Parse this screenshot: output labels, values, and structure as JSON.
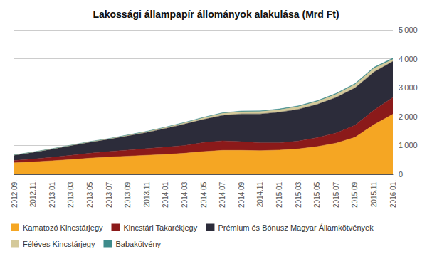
{
  "chart_data": {
    "type": "area",
    "title": "Lakossági állampapír állományok alakulása (Mrd Ft)",
    "stacked": true,
    "grid": true,
    "legend": "lower left",
    "categories": [
      "2012.09.",
      "2012.11.",
      "2013.01.",
      "2013.03.",
      "2013.05.",
      "2013.07.",
      "2013.09.",
      "2013.11.",
      "2014.01.",
      "2014.03.",
      "2014.05.",
      "2014.07.",
      "2014.09.",
      "2014.11.",
      "2015.01.",
      "2015.03.",
      "2015.05.",
      "2015.07.",
      "2015.09.",
      "2015.11.",
      "2016.01."
    ],
    "series": [
      {
        "name": "Kamatozó Kincstárjegy",
        "color": "#F5A623",
        "values": [
          400,
          430,
          470,
          510,
          560,
          600,
          630,
          660,
          690,
          730,
          790,
          830,
          830,
          820,
          840,
          880,
          960,
          1080,
          1280,
          1720,
          2080
        ]
      },
      {
        "name": "Kincstári Takarékjegy",
        "color": "#8B1A1A",
        "values": [
          80,
          100,
          120,
          150,
          170,
          190,
          210,
          230,
          250,
          270,
          310,
          330,
          300,
          270,
          250,
          270,
          310,
          350,
          420,
          500,
          580
        ]
      },
      {
        "name": "Prémium és Bónusz Magyar Államkötvények",
        "color": "#2C2C3A",
        "values": [
          180,
          230,
          280,
          330,
          380,
          420,
          490,
          560,
          650,
          740,
          800,
          880,
          960,
          1000,
          1060,
          1100,
          1150,
          1230,
          1290,
          1320,
          1250
        ]
      },
      {
        "name": "Féléves Kincstárjegy",
        "color": "#D4C99A",
        "values": [
          8,
          10,
          12,
          15,
          18,
          20,
          24,
          28,
          34,
          44,
          58,
          70,
          80,
          84,
          88,
          92,
          100,
          108,
          118,
          128,
          70
        ]
      },
      {
        "name": "Babakötvény",
        "color": "#3E8B8B",
        "values": [
          4,
          5,
          6,
          7,
          8,
          9,
          10,
          12,
          14,
          16,
          18,
          20,
          22,
          23,
          25,
          27,
          29,
          32,
          35,
          38,
          42
        ]
      }
    ],
    "ylim": [
      0,
      5000
    ],
    "yticks": [
      0,
      {
        "value": 1000,
        "label": "1 000"
      },
      {
        "value": 2000,
        "label": "2 000"
      },
      {
        "value": 3000,
        "label": "3 000"
      },
      {
        "value": 4000,
        "label": "4 000"
      },
      {
        "value": 5000,
        "label": "5 000"
      }
    ]
  }
}
